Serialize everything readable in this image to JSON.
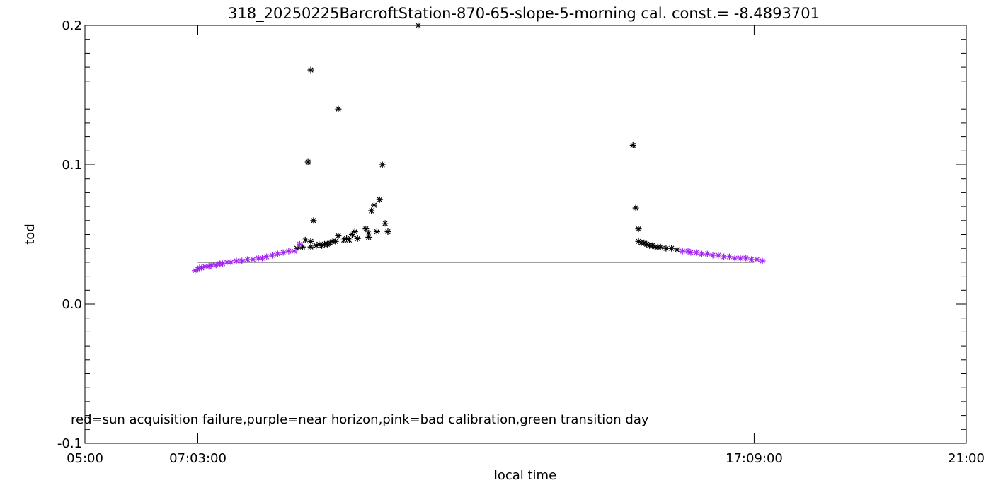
{
  "chart_data": {
    "type": "scatter",
    "title": "318_20250225BarcroftStation-870-65-slope-5-morning cal. const.= -8.4893701",
    "xlabel": "local time",
    "ylabel": "tod",
    "xlim_hours": [
      5,
      21
    ],
    "ylim": [
      -0.1,
      0.2
    ],
    "x_tick_labels": [
      {
        "hour": 5,
        "label": "05:00"
      },
      {
        "hour": 7.05,
        "label": "07:03:00"
      },
      {
        "hour": 17.15,
        "label": "17:09:00"
      },
      {
        "hour": 21,
        "label": "21:00"
      }
    ],
    "y_tick_labels": [
      {
        "value": -0.1,
        "label": "-0.1"
      },
      {
        "value": 0.0,
        "label": "0.0"
      },
      {
        "value": 0.1,
        "label": "0.1"
      },
      {
        "value": 0.2,
        "label": "0.2"
      }
    ],
    "annotation": "red=sun acquisition failure,purple=near horizon,pink=bad calibration,green transition day",
    "colors": {
      "normal": "#000000",
      "near_horizon": "#a020f0",
      "reference_line": "#000000"
    },
    "reference_line": {
      "x_start": 7.05,
      "x_end": 17.15,
      "y": 0.03
    },
    "series": [
      {
        "color": "#000000",
        "points": [
          [
            9.05,
            0.102
          ],
          [
            9.1,
            0.168
          ],
          [
            9.15,
            0.06
          ],
          [
            9.1,
            0.045
          ],
          [
            9.0,
            0.046
          ],
          [
            9.1,
            0.041
          ],
          [
            8.95,
            0.041
          ],
          [
            8.85,
            0.04
          ],
          [
            9.2,
            0.042
          ],
          [
            9.25,
            0.043
          ],
          [
            9.3,
            0.042
          ],
          [
            9.35,
            0.043
          ],
          [
            9.4,
            0.043
          ],
          [
            9.45,
            0.044
          ],
          [
            9.5,
            0.045
          ],
          [
            9.55,
            0.045
          ],
          [
            9.6,
            0.14
          ],
          [
            9.6,
            0.049
          ],
          [
            9.7,
            0.046
          ],
          [
            9.75,
            0.047
          ],
          [
            9.8,
            0.046
          ],
          [
            9.85,
            0.05
          ],
          [
            9.9,
            0.052
          ],
          [
            9.95,
            0.047
          ],
          [
            10.1,
            0.054
          ],
          [
            10.15,
            0.048
          ],
          [
            10.15,
            0.051
          ],
          [
            10.2,
            0.067
          ],
          [
            10.25,
            0.071
          ],
          [
            10.3,
            0.052
          ],
          [
            10.35,
            0.075
          ],
          [
            10.4,
            0.1
          ],
          [
            10.45,
            0.058
          ],
          [
            10.5,
            0.052
          ],
          [
            11.05,
            0.2
          ],
          [
            14.95,
            0.114
          ],
          [
            15.0,
            0.069
          ],
          [
            15.05,
            0.054
          ],
          [
            15.05,
            0.045
          ],
          [
            15.1,
            0.044
          ],
          [
            15.15,
            0.044
          ],
          [
            15.2,
            0.043
          ],
          [
            15.25,
            0.042
          ],
          [
            15.3,
            0.042
          ],
          [
            15.35,
            0.041
          ],
          [
            15.4,
            0.041
          ],
          [
            15.45,
            0.041
          ],
          [
            15.55,
            0.04
          ],
          [
            15.65,
            0.04
          ],
          [
            15.75,
            0.039
          ]
        ]
      },
      {
        "color": "#a020f0",
        "points": [
          [
            7.0,
            0.024
          ],
          [
            7.05,
            0.025
          ],
          [
            7.08,
            0.026
          ],
          [
            7.12,
            0.026
          ],
          [
            7.18,
            0.027
          ],
          [
            7.25,
            0.027
          ],
          [
            7.3,
            0.028
          ],
          [
            7.38,
            0.028
          ],
          [
            7.45,
            0.029
          ],
          [
            7.5,
            0.029
          ],
          [
            7.58,
            0.03
          ],
          [
            7.65,
            0.03
          ],
          [
            7.75,
            0.031
          ],
          [
            7.85,
            0.031
          ],
          [
            7.95,
            0.032
          ],
          [
            8.05,
            0.032
          ],
          [
            8.15,
            0.033
          ],
          [
            8.22,
            0.033
          ],
          [
            8.3,
            0.034
          ],
          [
            8.4,
            0.035
          ],
          [
            8.5,
            0.036
          ],
          [
            8.6,
            0.037
          ],
          [
            8.7,
            0.038
          ],
          [
            8.8,
            0.038
          ],
          [
            8.9,
            0.043
          ],
          [
            15.85,
            0.038
          ],
          [
            15.95,
            0.038
          ],
          [
            16.0,
            0.037
          ],
          [
            16.1,
            0.037
          ],
          [
            16.2,
            0.036
          ],
          [
            16.3,
            0.036
          ],
          [
            16.4,
            0.035
          ],
          [
            16.5,
            0.035
          ],
          [
            16.6,
            0.034
          ],
          [
            16.7,
            0.034
          ],
          [
            16.8,
            0.033
          ],
          [
            16.9,
            0.033
          ],
          [
            17.0,
            0.033
          ],
          [
            17.1,
            0.032
          ],
          [
            17.2,
            0.032
          ],
          [
            17.3,
            0.031
          ]
        ]
      }
    ]
  }
}
